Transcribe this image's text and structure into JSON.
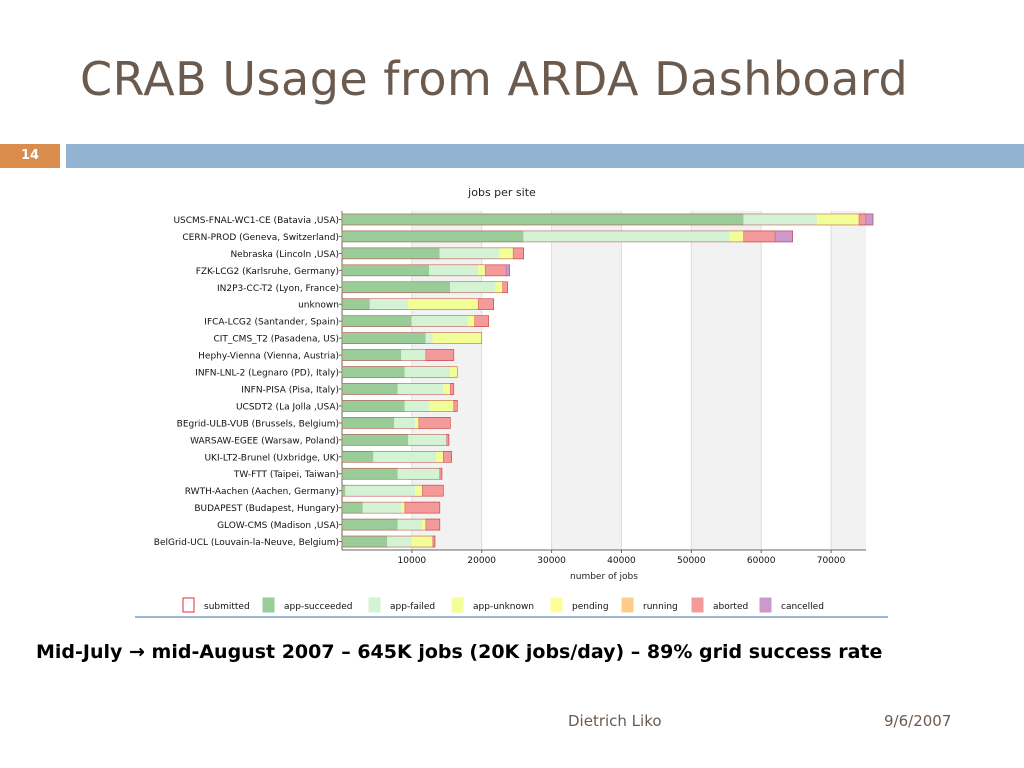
{
  "slide": {
    "title": "CRAB Usage from ARDA Dashboard",
    "number": "14",
    "caption": "Mid-July → mid-August 2007  –   645K jobs (20K jobs/day)  –  89% grid success rate",
    "author": "Dietrich Liko",
    "date": "9/6/2007"
  },
  "colors": {
    "title": "#6b5a4e",
    "number_box": "#d98c4c",
    "bar": "#93b3d2"
  },
  "chart_data": {
    "type": "bar",
    "orientation": "horizontal",
    "stacked": true,
    "title": "jobs per site",
    "xlabel": "number of jobs",
    "xlim": [
      0,
      75000
    ],
    "xticks": [
      10000,
      20000,
      30000,
      40000,
      50000,
      60000,
      70000
    ],
    "grid": true,
    "legend_position": "bottom",
    "categories": [
      "USCMS-FNAL-WC1-CE (Batavia ,USA)",
      "CERN-PROD (Geneva, Switzerland)",
      "Nebraska (Lincoln ,USA)",
      "FZK-LCG2 (Karlsruhe, Germany)",
      "IN2P3-CC-T2 (Lyon, France)",
      "unknown",
      "IFCA-LCG2 (Santander, Spain)",
      "CIT_CMS_T2 (Pasadena, US)",
      "Hephy-Vienna (Vienna, Austria)",
      "INFN-LNL-2 (Legnaro (PD), Italy)",
      "INFN-PISA (Pisa, Italy)",
      "UCSDT2 (La Jolla ,USA)",
      "BEgrid-ULB-VUB (Brussels, Belgium)",
      "WARSAW-EGEE (Warsaw, Poland)",
      "UKI-LT2-Brunel (Uxbridge, UK)",
      "TW-FTT (Taipei, Taiwan)",
      "RWTH-Aachen (Aachen, Germany)",
      "BUDAPEST (Budapest, Hungary)",
      "GLOW-CMS (Madison ,USA)",
      "BelGrid-UCL (Louvain-la-Neuve, Belgium)"
    ],
    "series": [
      {
        "name": "submitted",
        "color": "#ffffff",
        "border": "#e03030",
        "values": [
          0,
          0,
          0,
          0,
          0,
          0,
          0,
          0,
          0,
          0,
          0,
          0,
          0,
          0,
          0,
          0,
          0,
          0,
          0,
          0
        ]
      },
      {
        "name": "app-succeeded",
        "color": "#99cc99",
        "border": "#99cc99",
        "values": [
          57500,
          26000,
          14000,
          12500,
          15500,
          4000,
          10000,
          12000,
          8500,
          9000,
          8000,
          9000,
          7500,
          9500,
          4500,
          8000,
          500,
          3000,
          8000,
          6500
        ]
      },
      {
        "name": "app-failed",
        "color": "#d4f2d4",
        "border": "#d4f2d4",
        "values": [
          10500,
          29500,
          8500,
          7000,
          6500,
          5500,
          8000,
          1000,
          3500,
          6500,
          6500,
          3500,
          3000,
          5500,
          9000,
          6000,
          10000,
          5500,
          3500,
          3500
        ]
      },
      {
        "name": "app-unknown",
        "color": "#f2ff99",
        "border": "#f2ff99",
        "values": [
          6000,
          2000,
          2000,
          1000,
          1000,
          10000,
          1000,
          7000,
          0,
          1000,
          1000,
          3500,
          500,
          0,
          1000,
          0,
          1000,
          500,
          500,
          3000
        ]
      },
      {
        "name": "pending",
        "color": "#fcff99",
        "border": "#fcff99",
        "values": [
          0,
          0,
          0,
          0,
          0,
          0,
          0,
          0,
          0,
          0,
          0,
          0,
          0,
          0,
          0,
          0,
          0,
          0,
          0,
          0
        ]
      },
      {
        "name": "running",
        "color": "#ffcc88",
        "border": "#ffcc88",
        "values": [
          0,
          0,
          0,
          0,
          0,
          0,
          0,
          0,
          0,
          0,
          0,
          0,
          0,
          0,
          0,
          0,
          0,
          0,
          0,
          0
        ]
      },
      {
        "name": "aborted",
        "color": "#f59a9a",
        "border": "#e06060",
        "values": [
          1000,
          4500,
          1500,
          3000,
          700,
          2200,
          2000,
          0,
          4000,
          0,
          500,
          500,
          4500,
          300,
          1200,
          300,
          3000,
          5000,
          2000,
          300
        ]
      },
      {
        "name": "cancelled",
        "color": "#cc99cc",
        "border": "#b070b0",
        "values": [
          1000,
          2500,
          0,
          500,
          0,
          0,
          0,
          0,
          0,
          0,
          0,
          0,
          0,
          0,
          0,
          0,
          0,
          0,
          0,
          0
        ]
      }
    ]
  }
}
